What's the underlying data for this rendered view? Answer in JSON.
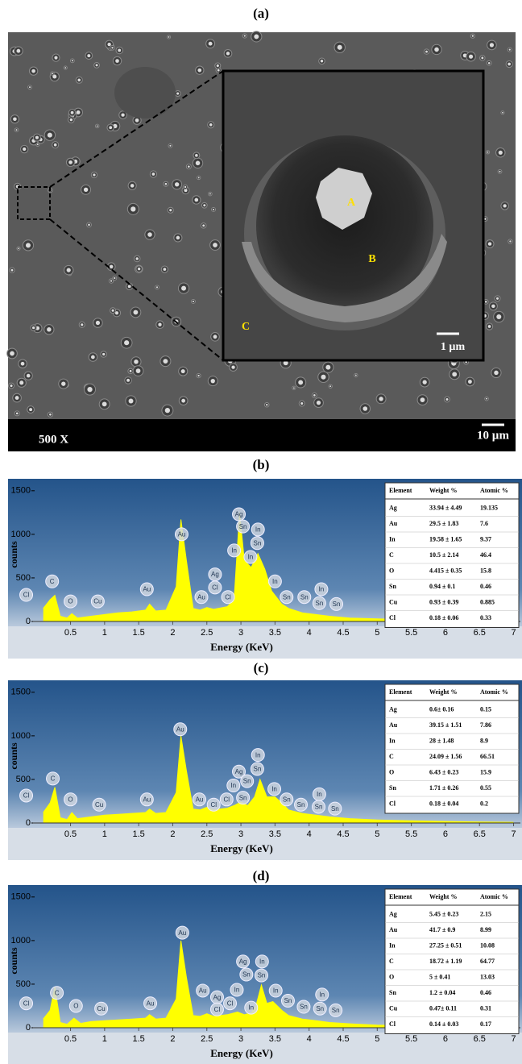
{
  "figure_a": {
    "label": "(a)",
    "magnification": "500 X",
    "scale_bar": "10 µm",
    "inset_scale_bar": "1 µm",
    "inset_points": [
      "A",
      "B",
      "C"
    ]
  },
  "chart_data": [
    {
      "type": "area",
      "title": "(b)",
      "y_label": "counts",
      "x_label": "Energy (KeV)",
      "color": "#ffff00",
      "xlim": [
        -0.05,
        7.1
      ],
      "ylim": [
        0,
        1600
      ],
      "xticks": [
        0.5,
        1,
        1.5,
        2,
        2.5,
        3,
        3.5,
        4,
        4.5,
        5,
        5.5,
        6,
        6.5,
        7
      ],
      "yticks": [
        0,
        500,
        1000,
        1500
      ],
      "x": [
        0.1,
        0.2,
        0.27,
        0.35,
        0.45,
        0.52,
        0.6,
        0.8,
        1.0,
        1.2,
        1.4,
        1.6,
        1.66,
        1.75,
        1.9,
        2.05,
        2.12,
        2.2,
        2.3,
        2.4,
        2.5,
        2.6,
        2.8,
        2.9,
        2.98,
        3.05,
        3.15,
        3.25,
        3.35,
        3.45,
        3.6,
        3.7,
        3.9,
        4.1,
        4.3,
        4.6,
        5,
        5.5,
        6,
        6.5,
        7
      ],
      "values": [
        150,
        250,
        300,
        60,
        40,
        90,
        40,
        60,
        80,
        100,
        110,
        130,
        200,
        120,
        130,
        400,
        1170,
        700,
        150,
        130,
        160,
        140,
        170,
        250,
        1250,
        700,
        620,
        780,
        600,
        350,
        200,
        150,
        100,
        80,
        60,
        40,
        30,
        20,
        15,
        10,
        8
      ],
      "annotations": [
        {
          "text": "Cl",
          "x": -0.15,
          "y": 305
        },
        {
          "text": "C",
          "x": 0.23,
          "y": 460
        },
        {
          "text": "O",
          "x": 0.5,
          "y": 230
        },
        {
          "text": "Cu",
          "x": 0.9,
          "y": 230
        },
        {
          "text": "Au",
          "x": 1.62,
          "y": 370
        },
        {
          "text": "Au",
          "x": 2.13,
          "y": 1000
        },
        {
          "text": "Au",
          "x": 2.42,
          "y": 280
        },
        {
          "text": "Ag",
          "x": 2.62,
          "y": 540
        },
        {
          "text": "Cl",
          "x": 2.62,
          "y": 390
        },
        {
          "text": "Cl",
          "x": 2.81,
          "y": 280
        },
        {
          "text": "Ag",
          "x": 2.97,
          "y": 1230
        },
        {
          "text": "Sn",
          "x": 3.03,
          "y": 1090
        },
        {
          "text": "In",
          "x": 2.9,
          "y": 815
        },
        {
          "text": "In",
          "x": 3.25,
          "y": 1055
        },
        {
          "text": "Sn",
          "x": 3.24,
          "y": 900
        },
        {
          "text": "In",
          "x": 3.14,
          "y": 740
        },
        {
          "text": "In",
          "x": 3.5,
          "y": 460
        },
        {
          "text": "Sn",
          "x": 3.67,
          "y": 280
        },
        {
          "text": "Sn",
          "x": 3.93,
          "y": 280
        },
        {
          "text": "In",
          "x": 4.18,
          "y": 370
        },
        {
          "text": "Sn",
          "x": 4.15,
          "y": 210
        },
        {
          "text": "Sn",
          "x": 4.4,
          "y": 200
        }
      ],
      "table": {
        "columns": [
          "Element",
          "Weight %",
          "Atomic %"
        ],
        "rows": [
          [
            "Ag",
            "33.94 ± 4.49",
            "19.135"
          ],
          [
            "Au",
            "29.5 ± 1.83",
            "7.6"
          ],
          [
            "In",
            "19.58 ± 1.65",
            "9.37"
          ],
          [
            "C",
            "10.5 ± 2.14",
            "46.4"
          ],
          [
            "O",
            "4.415 ± 0.35",
            "15.8"
          ],
          [
            "Sn",
            "0.94 ± 0.1",
            "0.46"
          ],
          [
            "Cu",
            "0.93 ± 0.39",
            "0.885"
          ],
          [
            "Cl",
            "0.18 ± 0.06",
            "0.33"
          ]
        ]
      }
    },
    {
      "type": "area",
      "title": "(c)",
      "y_label": "counts",
      "x_label": "Energy (KeV)",
      "color": "#ffff00",
      "xlim": [
        -0.05,
        7.1
      ],
      "ylim": [
        0,
        1600
      ],
      "xticks": [
        0.5,
        1,
        1.5,
        2,
        2.5,
        3,
        3.5,
        4,
        4.5,
        5,
        5.5,
        6,
        6.5,
        7
      ],
      "yticks": [
        0,
        500,
        1000,
        1500
      ],
      "x": [
        0.1,
        0.2,
        0.27,
        0.35,
        0.45,
        0.52,
        0.6,
        0.8,
        1.0,
        1.2,
        1.4,
        1.6,
        1.66,
        1.75,
        1.9,
        2.05,
        2.12,
        2.2,
        2.3,
        2.4,
        2.5,
        2.6,
        2.8,
        2.9,
        3.0,
        3.1,
        3.2,
        3.28,
        3.38,
        3.5,
        3.6,
        3.7,
        3.9,
        4.1,
        4.3,
        4.6,
        5,
        5.5,
        6,
        6.5,
        7
      ],
      "values": [
        120,
        230,
        410,
        60,
        40,
        120,
        50,
        70,
        90,
        100,
        110,
        120,
        160,
        110,
        120,
        350,
        1000,
        600,
        160,
        150,
        180,
        150,
        170,
        200,
        240,
        200,
        300,
        500,
        300,
        300,
        230,
        150,
        110,
        90,
        70,
        50,
        35,
        25,
        18,
        12,
        8
      ],
      "annotations": [
        {
          "text": "Cl",
          "x": -0.15,
          "y": 315
        },
        {
          "text": "C",
          "x": 0.24,
          "y": 510
        },
        {
          "text": "O",
          "x": 0.5,
          "y": 270
        },
        {
          "text": "Cu",
          "x": 0.92,
          "y": 210
        },
        {
          "text": "Au",
          "x": 1.62,
          "y": 270
        },
        {
          "text": "Au",
          "x": 2.11,
          "y": 1075
        },
        {
          "text": "Au",
          "x": 2.39,
          "y": 270
        },
        {
          "text": "Cl",
          "x": 2.6,
          "y": 210
        },
        {
          "text": "Cl",
          "x": 2.79,
          "y": 270
        },
        {
          "text": "In",
          "x": 2.89,
          "y": 430
        },
        {
          "text": "Ag",
          "x": 2.97,
          "y": 590
        },
        {
          "text": "Sn",
          "x": 3.09,
          "y": 480
        },
        {
          "text": "Sn",
          "x": 3.03,
          "y": 290
        },
        {
          "text": "In",
          "x": 3.25,
          "y": 780
        },
        {
          "text": "Sn",
          "x": 3.24,
          "y": 620
        },
        {
          "text": "In",
          "x": 3.49,
          "y": 390
        },
        {
          "text": "Sn",
          "x": 3.67,
          "y": 270
        },
        {
          "text": "Sn",
          "x": 3.88,
          "y": 210
        },
        {
          "text": "In",
          "x": 4.15,
          "y": 330
        },
        {
          "text": "Sn",
          "x": 4.14,
          "y": 185
        },
        {
          "text": "Sn",
          "x": 4.38,
          "y": 165
        }
      ],
      "table": {
        "columns": [
          "Element",
          "Weight %",
          "Atomic %"
        ],
        "rows": [
          [
            "Ag",
            "0.6± 0.16",
            "0.15"
          ],
          [
            "Au",
            "39.15 ± 1.51",
            "7.86"
          ],
          [
            "In",
            "28 ± 1.48",
            "8.9"
          ],
          [
            "C",
            "24.09 ± 1.56",
            "66.51"
          ],
          [
            "O",
            "6.43 ± 0.23",
            "15.9"
          ],
          [
            "Sn",
            "1.71 ± 0.26",
            "0.55"
          ],
          [
            "Cl",
            "0.18 ± 0.04",
            "0.2"
          ]
        ]
      }
    },
    {
      "type": "area",
      "title": "(d)",
      "y_label": "counts",
      "x_label": "Energy (KeV)",
      "color": "#ffff00",
      "xlim": [
        -0.05,
        7.1
      ],
      "ylim": [
        0,
        1600
      ],
      "xticks": [
        0.5,
        1,
        1.5,
        2,
        2.5,
        3,
        3.5,
        4,
        4.5,
        5,
        5.5,
        6,
        6.5,
        7
      ],
      "yticks": [
        0,
        500,
        1000,
        1500
      ],
      "x": [
        0.1,
        0.2,
        0.27,
        0.35,
        0.45,
        0.55,
        0.65,
        0.8,
        1.0,
        1.2,
        1.4,
        1.6,
        1.66,
        1.75,
        1.9,
        2.05,
        2.12,
        2.2,
        2.3,
        2.4,
        2.5,
        2.6,
        2.8,
        2.95,
        3.05,
        3.15,
        3.22,
        3.3,
        3.38,
        3.47,
        3.6,
        3.7,
        3.9,
        4.1,
        4.3,
        4.6,
        5,
        5.5,
        6,
        6.5,
        7
      ],
      "values": [
        100,
        200,
        470,
        60,
        40,
        110,
        50,
        70,
        80,
        90,
        100,
        110,
        150,
        100,
        110,
        330,
        1000,
        580,
        140,
        130,
        160,
        130,
        150,
        180,
        150,
        170,
        250,
        490,
        280,
        300,
        200,
        140,
        100,
        80,
        60,
        45,
        30,
        22,
        15,
        10,
        7
      ],
      "annotations": [
        {
          "text": "Cl",
          "x": -0.15,
          "y": 280
        },
        {
          "text": "C",
          "x": 0.3,
          "y": 400
        },
        {
          "text": "O",
          "x": 0.58,
          "y": 250
        },
        {
          "text": "Cu",
          "x": 0.95,
          "y": 220
        },
        {
          "text": "Au",
          "x": 1.67,
          "y": 280
        },
        {
          "text": "Au",
          "x": 2.14,
          "y": 1090
        },
        {
          "text": "Au",
          "x": 2.44,
          "y": 425
        },
        {
          "text": "Ag",
          "x": 2.65,
          "y": 350
        },
        {
          "text": "Cl",
          "x": 2.65,
          "y": 210
        },
        {
          "text": "Cl",
          "x": 2.84,
          "y": 280
        },
        {
          "text": "In",
          "x": 2.94,
          "y": 435
        },
        {
          "text": "Ag",
          "x": 3.03,
          "y": 760
        },
        {
          "text": "Sn",
          "x": 3.08,
          "y": 610
        },
        {
          "text": "In",
          "x": 3.15,
          "y": 230
        },
        {
          "text": "In",
          "x": 3.31,
          "y": 760
        },
        {
          "text": "Sn",
          "x": 3.3,
          "y": 600
        },
        {
          "text": "In",
          "x": 3.51,
          "y": 425
        },
        {
          "text": "Sn",
          "x": 3.69,
          "y": 310
        },
        {
          "text": "Sn",
          "x": 3.92,
          "y": 240
        },
        {
          "text": "In",
          "x": 4.19,
          "y": 380
        },
        {
          "text": "Sn",
          "x": 4.16,
          "y": 220
        },
        {
          "text": "Sn",
          "x": 4.39,
          "y": 200
        }
      ],
      "table": {
        "columns": [
          "Element",
          "Weight %",
          "Atomic %"
        ],
        "rows": [
          [
            "Ag",
            "5.45 ± 0.23",
            "2.15"
          ],
          [
            "Au",
            "41.7 ± 0.9",
            "8.99"
          ],
          [
            "In",
            "27.25 ± 0.51",
            "10.08"
          ],
          [
            "C",
            "18.72 ± 1.19",
            "64.77"
          ],
          [
            "O",
            "5 ± 0.41",
            "13.03"
          ],
          [
            "Sn",
            "1.2 ± 0.04",
            "0.46"
          ],
          [
            "Cu",
            "0.47± 0.11",
            "0.31"
          ],
          [
            "Cl",
            "0.14 ± 0.03",
            "0.17"
          ]
        ]
      }
    }
  ]
}
